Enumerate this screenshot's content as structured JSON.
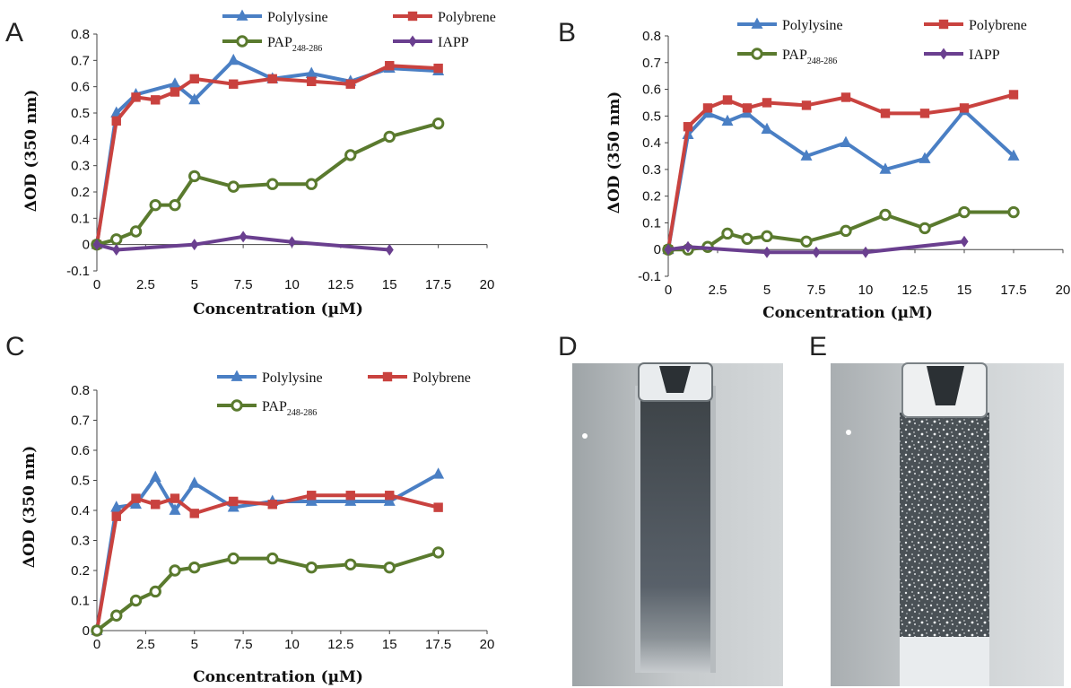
{
  "colors": {
    "Polylysine": "#4a7fc4",
    "Polybrene": "#c9423f",
    "PAP": "#5a7a2e",
    "IAPP": "#6a3f8f"
  },
  "chart_data": [
    {
      "panel": "A",
      "type": "line",
      "xlabel": "Concentration (µM)",
      "ylabel": "ΔOD (350 nm)",
      "xlim": [
        0,
        20
      ],
      "ylim": [
        -0.1,
        0.8
      ],
      "xticks": [
        "0",
        "2.5",
        "5",
        "7.5",
        "10",
        "12.5",
        "15",
        "17.5",
        "20"
      ],
      "yticks": [
        "-0.1",
        "0",
        "0.1",
        "0.2",
        "0.3",
        "0.4",
        "0.5",
        "0.6",
        "0.7",
        "0.8"
      ],
      "legend": [
        "Polylysine",
        "Polybrene",
        "PAP248-286",
        "IAPP"
      ],
      "series": [
        {
          "name": "Polylysine",
          "key": "Polylysine",
          "marker": "triangle",
          "x": [
            0,
            1,
            2,
            4,
            5,
            7,
            9,
            11,
            13,
            15,
            17.5
          ],
          "y": [
            0,
            0.5,
            0.57,
            0.61,
            0.55,
            0.7,
            0.63,
            0.65,
            0.62,
            0.67,
            0.66
          ]
        },
        {
          "name": "Polybrene",
          "key": "Polybrene",
          "marker": "square",
          "x": [
            0,
            1,
            2,
            3,
            4,
            5,
            7,
            9,
            11,
            13,
            15,
            17.5
          ],
          "y": [
            0,
            0.47,
            0.56,
            0.55,
            0.58,
            0.63,
            0.61,
            0.63,
            0.62,
            0.61,
            0.68,
            0.67
          ]
        },
        {
          "name": "PAP248-286",
          "key": "PAP",
          "marker": "circle",
          "x": [
            0,
            1,
            2,
            3,
            4,
            5,
            7,
            9,
            11,
            13,
            15,
            17.5
          ],
          "y": [
            0,
            0.02,
            0.05,
            0.15,
            0.15,
            0.26,
            0.22,
            0.23,
            0.23,
            0.34,
            0.41,
            0.46
          ]
        },
        {
          "name": "IAPP",
          "key": "IAPP",
          "marker": "diamond",
          "x": [
            0,
            1,
            5,
            7.5,
            10,
            15
          ],
          "y": [
            0,
            -0.02,
            0,
            0.03,
            0.01,
            -0.02
          ]
        }
      ]
    },
    {
      "panel": "B",
      "type": "line",
      "xlabel": "Concentration (µM)",
      "ylabel": "ΔOD (350 nm)",
      "xlim": [
        0,
        20
      ],
      "ylim": [
        -0.1,
        0.8
      ],
      "xticks": [
        "0",
        "2.5",
        "5",
        "7.5",
        "10",
        "12.5",
        "15",
        "17.5",
        "20"
      ],
      "yticks": [
        "-0.1",
        "0",
        "0.1",
        "0.2",
        "0.3",
        "0.4",
        "0.5",
        "0.6",
        "0.7",
        "0.8"
      ],
      "legend": [
        "Polylysine",
        "Polybrene",
        "PAP248-286",
        "IAPP"
      ],
      "series": [
        {
          "name": "Polylysine",
          "key": "Polylysine",
          "marker": "triangle",
          "x": [
            0,
            1,
            2,
            3,
            4,
            5,
            7,
            9,
            11,
            13,
            15,
            17.5
          ],
          "y": [
            0,
            0.43,
            0.51,
            0.48,
            0.51,
            0.45,
            0.35,
            0.4,
            0.3,
            0.34,
            0.52,
            0.35
          ]
        },
        {
          "name": "Polybrene",
          "key": "Polybrene",
          "marker": "square",
          "x": [
            0,
            1,
            2,
            3,
            4,
            5,
            7,
            9,
            11,
            13,
            15,
            17.5
          ],
          "y": [
            0,
            0.46,
            0.53,
            0.56,
            0.53,
            0.55,
            0.54,
            0.57,
            0.51,
            0.51,
            0.53,
            0.58
          ]
        },
        {
          "name": "PAP248-286",
          "key": "PAP",
          "marker": "circle",
          "x": [
            0,
            1,
            2,
            3,
            4,
            5,
            7,
            9,
            11,
            13,
            15,
            17.5
          ],
          "y": [
            0,
            0,
            0.01,
            0.06,
            0.04,
            0.05,
            0.03,
            0.07,
            0.13,
            0.08,
            0.14,
            0.14
          ]
        },
        {
          "name": "IAPP",
          "key": "IAPP",
          "marker": "diamond",
          "x": [
            0,
            1,
            5,
            7.5,
            10,
            15
          ],
          "y": [
            0,
            0.01,
            -0.01,
            -0.01,
            -0.01,
            0.03
          ]
        }
      ]
    },
    {
      "panel": "C",
      "type": "line",
      "xlabel": "Concentration (µM)",
      "ylabel": "ΔOD (350 nm)",
      "xlim": [
        0,
        20
      ],
      "ylim": [
        0,
        0.8
      ],
      "xticks": [
        "0",
        "2.5",
        "5",
        "7.5",
        "10",
        "12.5",
        "15",
        "17.5",
        "20"
      ],
      "yticks": [
        "0",
        "0.1",
        "0.2",
        "0.3",
        "0.4",
        "0.5",
        "0.6",
        "0.7",
        "0.8"
      ],
      "legend": [
        "Polylysine",
        "Polybrene",
        "PAP248-286"
      ],
      "series": [
        {
          "name": "Polylysine",
          "key": "Polylysine",
          "marker": "triangle",
          "x": [
            0,
            1,
            2,
            3,
            4,
            5,
            7,
            9,
            11,
            13,
            15,
            17.5
          ],
          "y": [
            0,
            0.41,
            0.42,
            0.51,
            0.4,
            0.49,
            0.41,
            0.43,
            0.43,
            0.43,
            0.43,
            0.52
          ]
        },
        {
          "name": "Polybrene",
          "key": "Polybrene",
          "marker": "square",
          "x": [
            0,
            1,
            2,
            3,
            4,
            5,
            7,
            9,
            11,
            13,
            15,
            17.5
          ],
          "y": [
            0,
            0.38,
            0.44,
            0.42,
            0.44,
            0.39,
            0.43,
            0.42,
            0.45,
            0.45,
            0.45,
            0.41
          ]
        },
        {
          "name": "PAP248-286",
          "key": "PAP",
          "marker": "circle",
          "x": [
            0,
            1,
            2,
            3,
            4,
            5,
            7,
            9,
            11,
            13,
            15,
            17.5
          ],
          "y": [
            0,
            0.05,
            0.1,
            0.13,
            0.2,
            0.21,
            0.24,
            0.24,
            0.21,
            0.22,
            0.21,
            0.26
          ]
        }
      ]
    }
  ],
  "photos": [
    {
      "label": "D"
    },
    {
      "label": "E"
    }
  ]
}
